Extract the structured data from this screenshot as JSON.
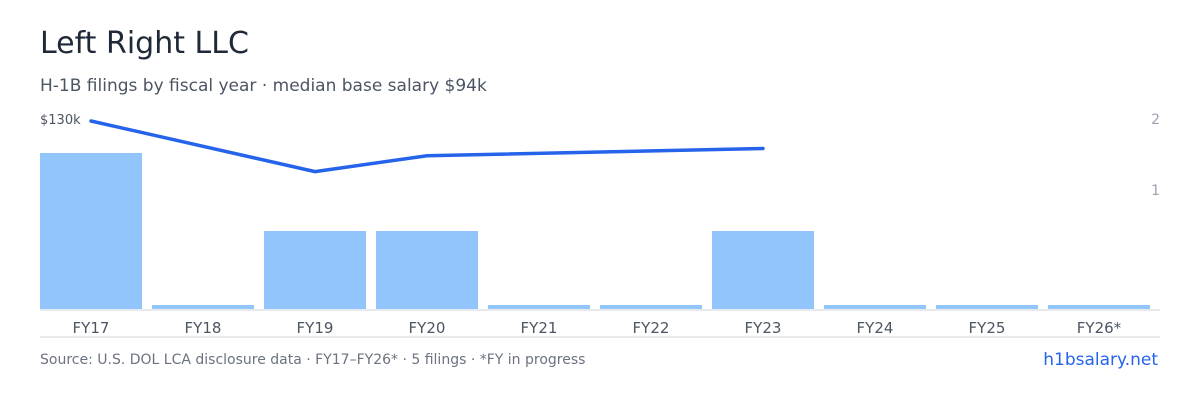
{
  "header": {
    "title": "Left Right LLC",
    "subtitle": "H-1B filings by fiscal year · median base salary $94k"
  },
  "footer": {
    "source": "Source: U.S. DOL LCA disclosure data · FY17–FY26* · 5 filings · *FY in progress",
    "link": "h1bsalary.net"
  },
  "colors": {
    "bar": "#93c5fd",
    "line": "#2563eb",
    "axis": "#d1d5db",
    "tick_text": "#4b5563",
    "right_tick_text": "#9ca3af"
  },
  "chart_data": {
    "type": "bar",
    "categories": [
      "FY17",
      "FY18",
      "FY19",
      "FY20",
      "FY21",
      "FY22",
      "FY23",
      "FY24",
      "FY25",
      "FY26*"
    ],
    "series": [
      {
        "type": "bar",
        "axis": "right",
        "values": [
          2,
          0,
          1,
          1,
          0,
          0,
          1,
          0,
          0,
          0
        ]
      },
      {
        "type": "line",
        "axis": "left",
        "values": [
          130,
          null,
          95,
          106,
          null,
          null,
          111,
          null,
          null,
          null
        ]
      }
    ],
    "left_axis": {
      "top_label": "$130k",
      "max": 130
    },
    "right_axis": {
      "ticks": [
        "2",
        "1"
      ],
      "max": 2.4
    },
    "grid": false
  }
}
